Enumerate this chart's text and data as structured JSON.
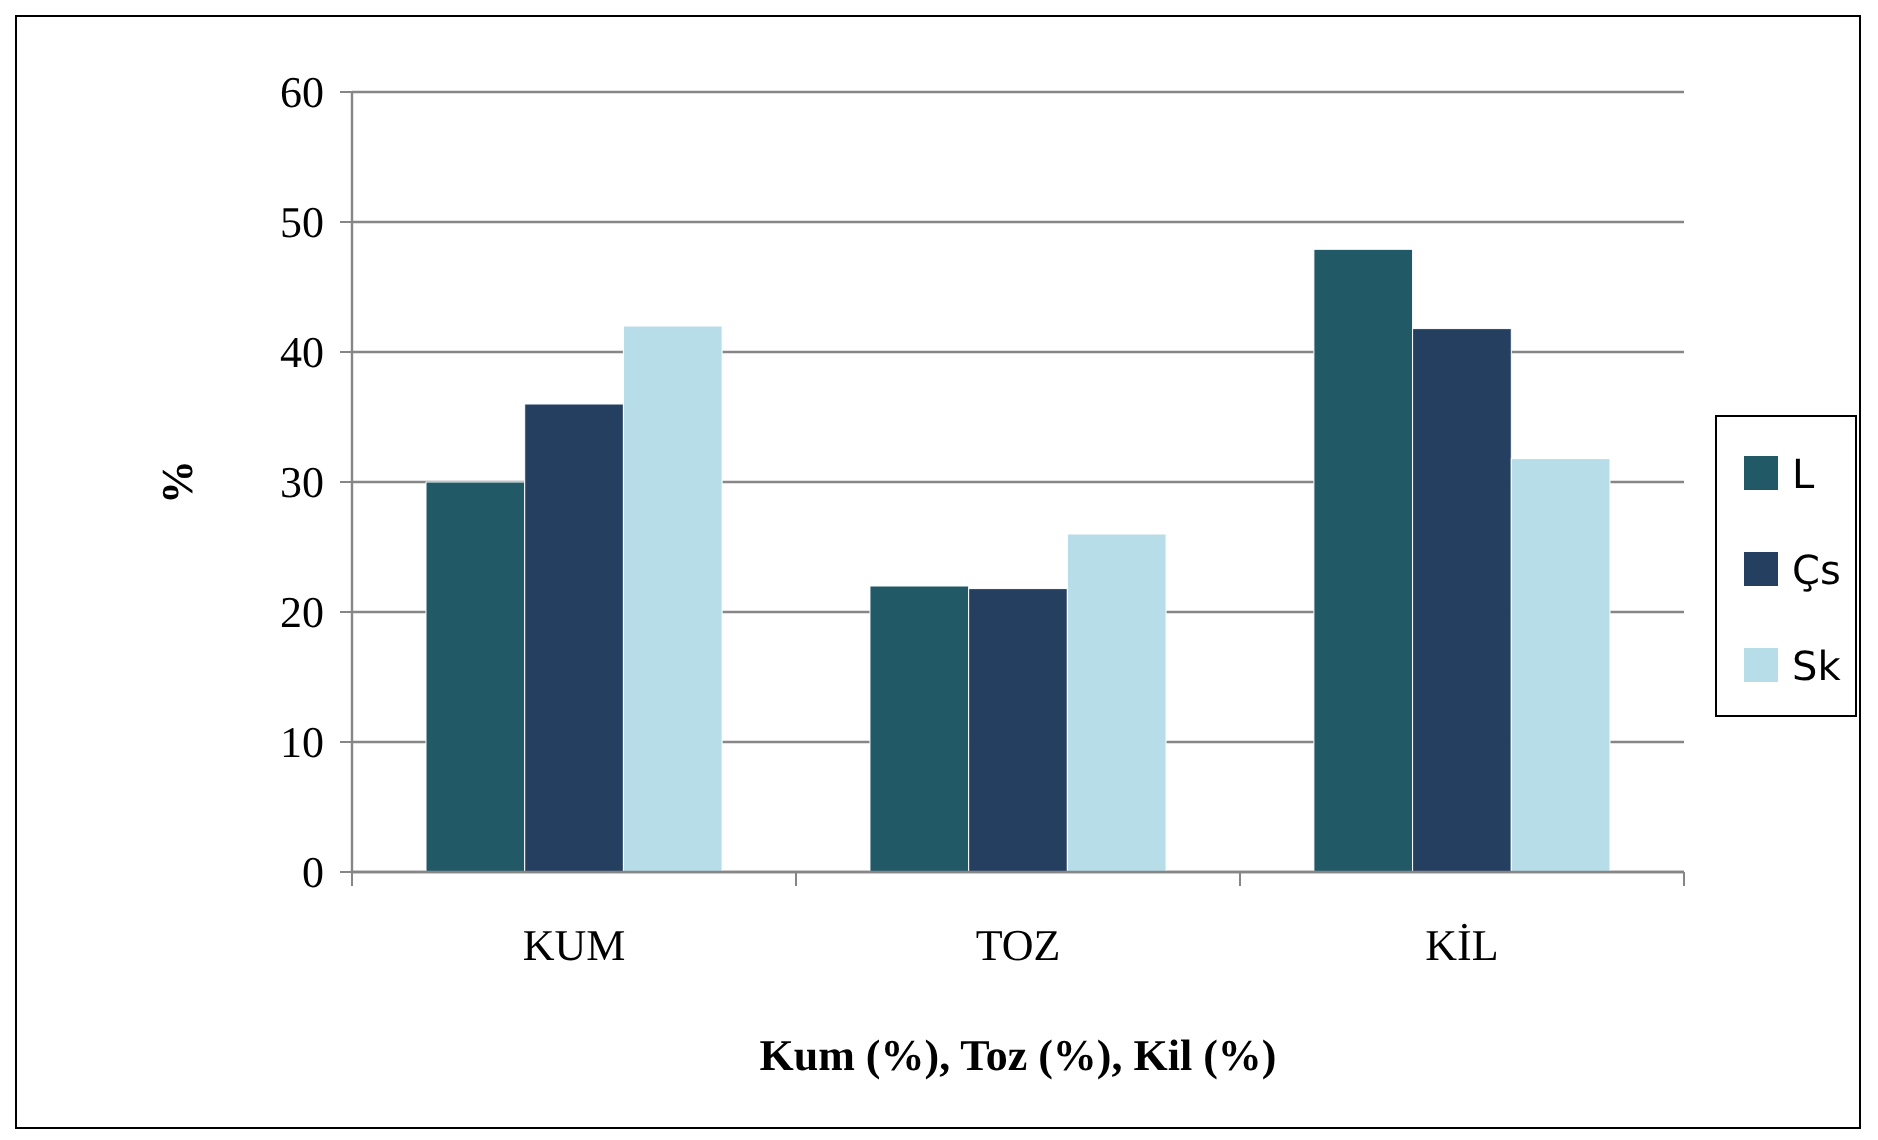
{
  "chart_data": {
    "type": "bar",
    "xlabel": "Kum (%), Toz (%), Kil (%)",
    "ylabel": "%",
    "categories": [
      "KUM",
      "TOZ",
      "KİL"
    ],
    "series": [
      {
        "name": "L",
        "color": "#215967",
        "values": [
          30,
          22,
          47.9
        ]
      },
      {
        "name": "Çs",
        "color": "#253f60",
        "values": [
          36,
          21.8,
          41.8
        ]
      },
      {
        "name": "Sk",
        "color": "#b7dde8",
        "values": [
          42,
          26,
          31.8
        ]
      }
    ],
    "ylim": [
      0,
      60
    ],
    "yticks": [
      0,
      10,
      20,
      30,
      40,
      50,
      60
    ],
    "grid": "y",
    "legend": "right"
  }
}
